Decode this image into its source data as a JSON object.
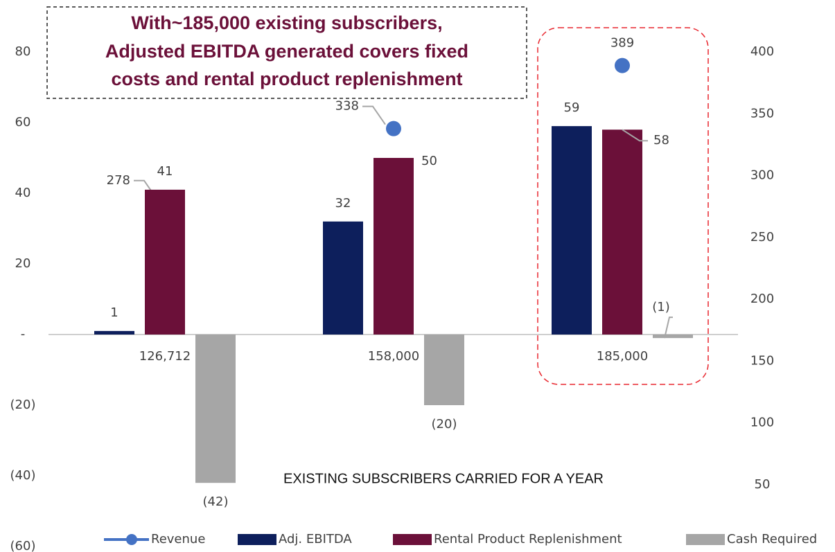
{
  "chart_data": {
    "type": "bar",
    "callout": [
      "With~185,000 existing subscribers,",
      "Adjusted EBITDA generated covers fixed",
      "costs and rental product replenishment"
    ],
    "x_label": "EXISTING SUBSCRIBERS CARRIED FOR A YEAR",
    "categories": [
      "126,712",
      "158,000",
      "185,000"
    ],
    "series": [
      {
        "name": "Revenue",
        "type": "scatter",
        "axis": "y2",
        "color": "#4472c4",
        "values": [
          278,
          338,
          389
        ]
      },
      {
        "name": "Adj. EBITDA",
        "color": "#0d1f5c",
        "values": [
          1,
          32,
          59
        ]
      },
      {
        "name": "Rental Product Replenishment",
        "color": "#6b1039",
        "values": [
          41,
          50,
          58
        ]
      },
      {
        "name": "Cash Required",
        "color": "#a6a6a6",
        "values": [
          -42,
          -20,
          -1
        ],
        "value_labels": [
          "(42)",
          "(20)",
          "(1)"
        ]
      }
    ],
    "ylim": [
      -60,
      80
    ],
    "yticks": [
      80,
      60,
      40,
      20,
      {
        "value": 0,
        "label": "-"
      },
      {
        "value": -20,
        "label": "(20)"
      },
      {
        "value": -40,
        "label": "(40)"
      },
      {
        "value": -60,
        "label": "(60)"
      }
    ],
    "y2lim": [
      0,
      400
    ],
    "y2ticks": [
      400,
      350,
      300,
      250,
      200,
      150,
      100,
      50
    ],
    "legend": "bottom"
  }
}
